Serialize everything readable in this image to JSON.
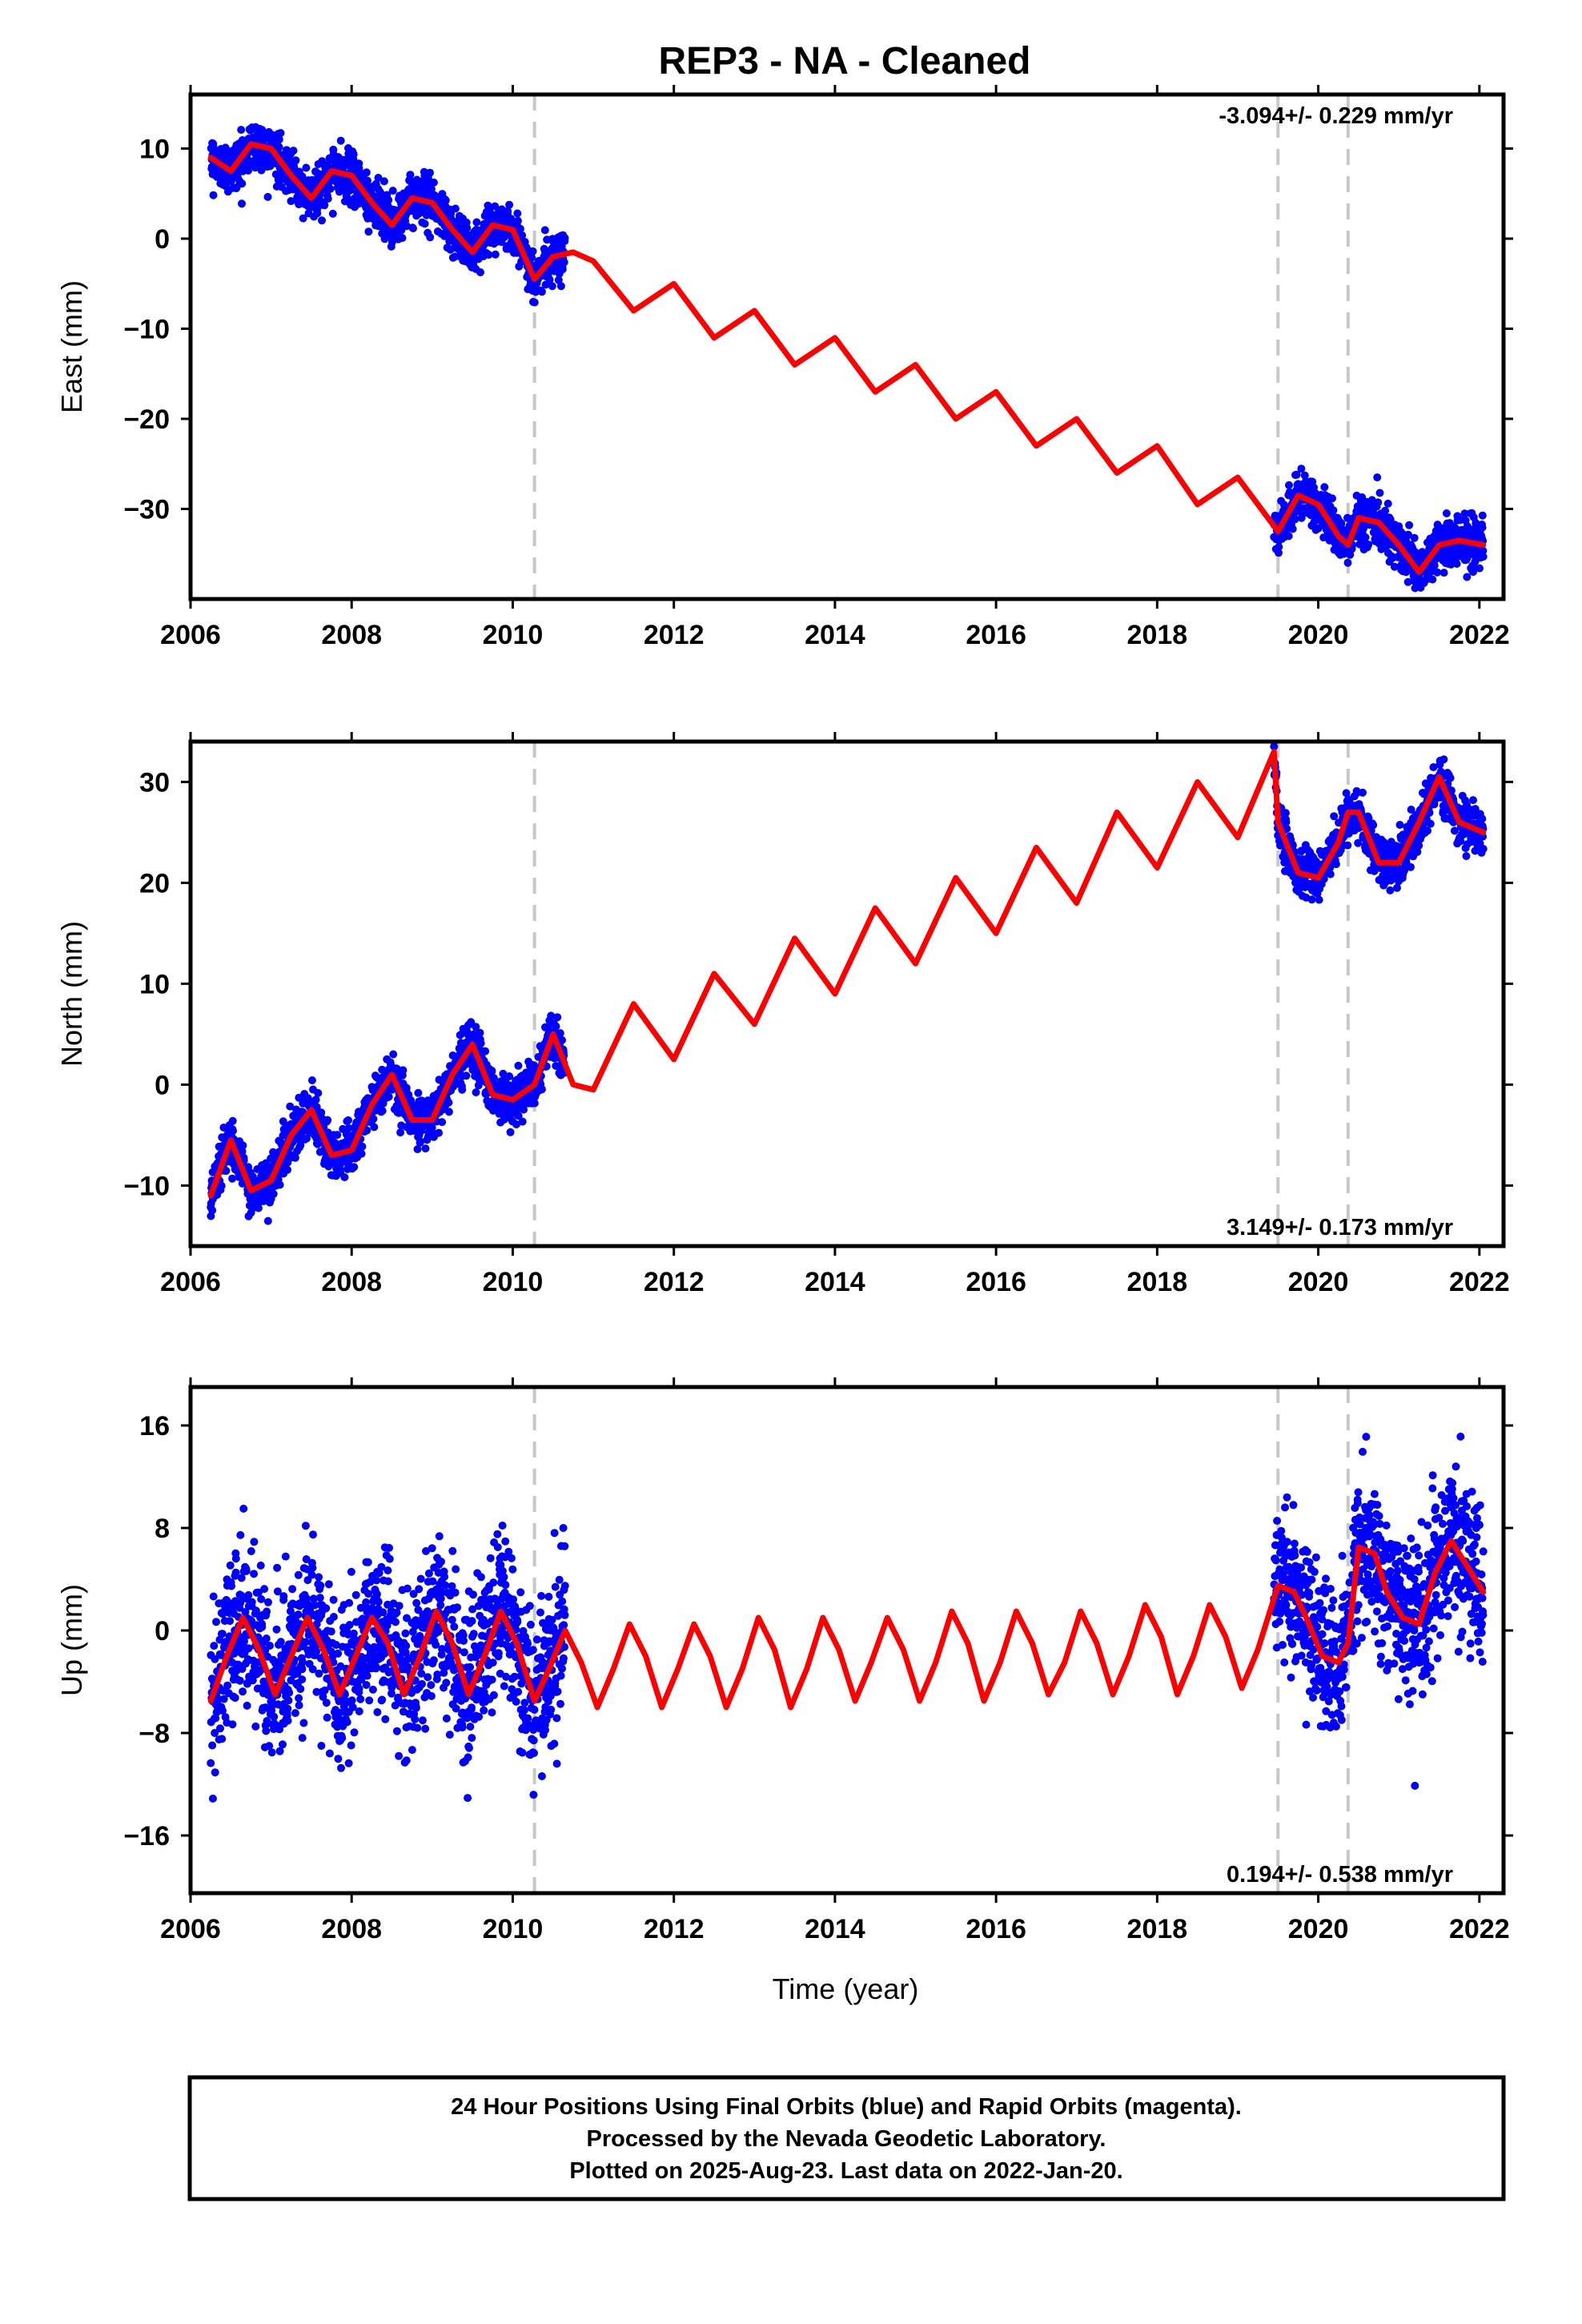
{
  "chart_data": {
    "type": "scatter",
    "title": "REP3  - NA - Cleaned",
    "xlabel": "Time (year)",
    "xlim": [
      2006,
      2022.3
    ],
    "x_ticks": [
      "2006",
      "2008",
      "2010",
      "2012",
      "2014",
      "2016",
      "2018",
      "2020",
      "2022"
    ],
    "grid": false,
    "breaks": [
      2010.27,
      2019.5,
      2020.37
    ],
    "data_coverage": [
      [
        2006.25,
        2010.65
      ],
      [
        2019.45,
        2022.05
      ]
    ],
    "colors": {
      "observations": "#0000ff",
      "model": "#ff0000",
      "breaks": "#c8c8c8",
      "frame": "#000000"
    },
    "panels": [
      {
        "name": "east",
        "ylabel": "East (mm)",
        "ylim": [
          -40,
          16
        ],
        "y_ticks": [
          "10",
          "0",
          "−10",
          "−20",
          "−30"
        ],
        "rate_label": "-3.094+/- 0.229 mm/yr",
        "rate_position": "top-right",
        "series": [
          {
            "name": "model",
            "x": [
              2006.25,
              2006.5,
              2006.75,
              2007.0,
              2007.25,
              2007.5,
              2007.75,
              2008.0,
              2008.25,
              2008.5,
              2008.75,
              2009.0,
              2009.25,
              2009.5,
              2009.75,
              2010.0,
              2010.27,
              2010.5,
              2010.75,
              2011.0,
              2011.5,
              2012.0,
              2012.5,
              2013.0,
              2013.5,
              2014.0,
              2014.5,
              2015.0,
              2015.5,
              2016.0,
              2016.5,
              2017.0,
              2017.5,
              2018.0,
              2018.5,
              2019.0,
              2019.5,
              2019.75,
              2020.0,
              2020.25,
              2020.37,
              2020.5,
              2020.75,
              2021.0,
              2021.25,
              2021.5,
              2021.75,
              2022.05
            ],
            "y": [
              9.0,
              7.5,
              10.5,
              10.0,
              7.0,
              4.5,
              7.5,
              7.0,
              4.0,
              1.5,
              4.5,
              4.0,
              1.0,
              -1.5,
              1.5,
              1.0,
              -4.5,
              -2.0,
              -1.5,
              -2.5,
              -8.0,
              -5.0,
              -11.0,
              -8.0,
              -14.0,
              -11.0,
              -17.0,
              -14.0,
              -20.0,
              -17.0,
              -23.0,
              -20.0,
              -26.0,
              -23.0,
              -29.5,
              -26.5,
              -32.5,
              -28.5,
              -29.5,
              -33.0,
              -34.0,
              -31.0,
              -31.5,
              -34.0,
              -37.0,
              -34.0,
              -33.5,
              -34.0
            ]
          }
        ]
      },
      {
        "name": "north",
        "ylabel": "North (mm)",
        "ylim": [
          -16,
          34
        ],
        "y_ticks": [
          "30",
          "20",
          "10",
          "0",
          "−10"
        ],
        "rate_label": "3.149+/- 0.173 mm/yr",
        "rate_position": "bottom-right",
        "series": [
          {
            "name": "model",
            "x": [
              2006.25,
              2006.5,
              2006.75,
              2007.0,
              2007.25,
              2007.5,
              2007.75,
              2008.0,
              2008.25,
              2008.5,
              2008.75,
              2009.0,
              2009.25,
              2009.5,
              2009.75,
              2010.0,
              2010.27,
              2010.5,
              2010.75,
              2011.0,
              2011.5,
              2012.0,
              2012.5,
              2013.0,
              2013.5,
              2014.0,
              2014.5,
              2015.0,
              2015.5,
              2016.0,
              2016.5,
              2017.0,
              2017.5,
              2018.0,
              2018.5,
              2019.0,
              2019.45,
              2019.5,
              2019.75,
              2020.0,
              2020.25,
              2020.37,
              2020.5,
              2020.75,
              2021.0,
              2021.25,
              2021.5,
              2021.75,
              2022.05
            ],
            "y": [
              -11.0,
              -5.5,
              -10.5,
              -9.5,
              -5.0,
              -2.5,
              -7.0,
              -6.5,
              -2.0,
              1.0,
              -3.5,
              -3.5,
              1.0,
              4.0,
              -1.0,
              -1.5,
              0.0,
              5.0,
              0.0,
              -0.5,
              8.0,
              2.5,
              11.0,
              6.0,
              14.5,
              9.0,
              17.5,
              12.0,
              20.5,
              15.0,
              23.5,
              18.0,
              27.0,
              21.5,
              30.0,
              24.5,
              33.0,
              26.0,
              21.0,
              20.5,
              24.0,
              27.0,
              27.0,
              22.0,
              22.0,
              26.0,
              30.5,
              26.0,
              25.0
            ]
          }
        ]
      },
      {
        "name": "up",
        "ylabel": "Up (mm)",
        "ylim": [
          -20.5,
          19
        ],
        "y_ticks": [
          "16",
          "8",
          "0",
          "−8",
          "−16"
        ],
        "rate_label": "0.194+/- 0.538 mm/yr",
        "rate_position": "bottom-right",
        "series": [
          {
            "name": "model",
            "x": [
              2006.25,
              2006.45,
              2006.65,
              2006.85,
              2007.05,
              2007.25,
              2007.45,
              2007.65,
              2007.85,
              2008.05,
              2008.25,
              2008.45,
              2008.65,
              2008.85,
              2009.05,
              2009.25,
              2009.45,
              2009.65,
              2009.85,
              2010.05,
              2010.27,
              2010.45,
              2010.65,
              2010.85,
              2011.05,
              2011.25,
              2011.45,
              2011.65,
              2011.85,
              2012.05,
              2012.25,
              2012.45,
              2012.65,
              2012.85,
              2013.05,
              2013.25,
              2013.45,
              2013.65,
              2013.85,
              2014.05,
              2014.25,
              2014.45,
              2014.65,
              2014.85,
              2015.05,
              2015.25,
              2015.45,
              2015.65,
              2015.85,
              2016.05,
              2016.25,
              2016.45,
              2016.65,
              2016.85,
              2017.05,
              2017.25,
              2017.45,
              2017.65,
              2017.85,
              2018.05,
              2018.25,
              2018.45,
              2018.65,
              2018.85,
              2019.05,
              2019.25,
              2019.5,
              2019.7,
              2019.85,
              2020.05,
              2020.25,
              2020.37,
              2020.5,
              2020.7,
              2020.85,
              2021.05,
              2021.25,
              2021.45,
              2021.65,
              2021.85,
              2022.05
            ],
            "y": [
              -5.5,
              -2.0,
              1.0,
              -1.5,
              -5.0,
              -2.0,
              1.0,
              -1.5,
              -5.0,
              -2.0,
              1.0,
              -1.0,
              -5.0,
              -2.0,
              1.5,
              -1.0,
              -5.0,
              -2.0,
              1.5,
              -1.0,
              -5.5,
              -3.0,
              0.0,
              -2.5,
              -6.0,
              -3.0,
              0.5,
              -2.0,
              -6.0,
              -3.0,
              0.5,
              -2.0,
              -6.0,
              -3.0,
              1.0,
              -1.5,
              -6.0,
              -3.0,
              1.0,
              -1.5,
              -5.5,
              -2.5,
              1.0,
              -1.5,
              -5.5,
              -2.5,
              1.5,
              -1.0,
              -5.5,
              -2.5,
              1.5,
              -1.0,
              -5.0,
              -2.5,
              1.5,
              -1.0,
              -5.0,
              -2.0,
              2.0,
              -0.5,
              -5.0,
              -2.0,
              2.0,
              -0.5,
              -4.5,
              -1.5,
              3.5,
              3.0,
              1.0,
              -2.0,
              -2.5,
              -1.0,
              6.5,
              6.0,
              3.0,
              1.0,
              0.5,
              4.5,
              7.0,
              5.0,
              3.0
            ]
          }
        ]
      }
    ]
  },
  "footer": {
    "line1": "24 Hour Positions Using Final Orbits (blue) and Rapid Orbits (magenta).",
    "line2": "Processed by the Nevada Geodetic Laboratory.",
    "line3": "Plotted on 2025-Aug-23. Last data on 2022-Jan-20."
  }
}
